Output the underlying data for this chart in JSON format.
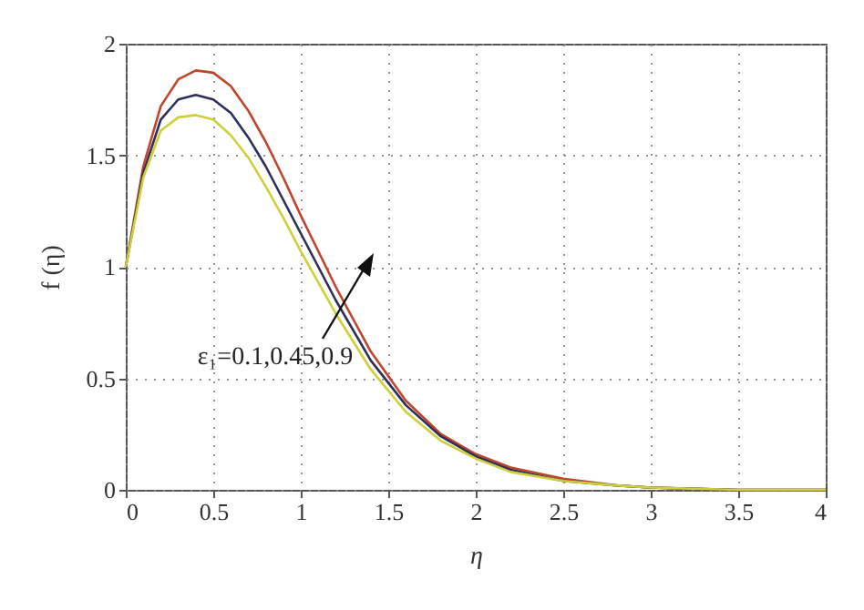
{
  "chart_data": {
    "type": "line",
    "xlabel": "η",
    "ylabel": "f (η)",
    "x": [
      0,
      0.1,
      0.2,
      0.3,
      0.4,
      0.5,
      0.6,
      0.7,
      0.8,
      0.9,
      1.0,
      1.2,
      1.4,
      1.6,
      1.8,
      2,
      2.2,
      2.5,
      2.8,
      3,
      3.5,
      4
    ],
    "series": [
      {
        "color": "#c0452c",
        "values": [
          1.0,
          1.45,
          1.72,
          1.84,
          1.88,
          1.87,
          1.81,
          1.7,
          1.56,
          1.4,
          1.23,
          0.91,
          0.62,
          0.4,
          0.25,
          0.16,
          0.1,
          0.05,
          0.02,
          0.01,
          0,
          0
        ]
      },
      {
        "color": "#2b2f5a",
        "values": [
          1.0,
          1.42,
          1.66,
          1.75,
          1.77,
          1.75,
          1.69,
          1.58,
          1.45,
          1.3,
          1.15,
          0.85,
          0.58,
          0.38,
          0.24,
          0.15,
          0.09,
          0.04,
          0.02,
          0.01,
          0,
          0
        ]
      },
      {
        "color": "#cfcf3a",
        "values": [
          1.0,
          1.4,
          1.61,
          1.67,
          1.68,
          1.66,
          1.59,
          1.49,
          1.36,
          1.22,
          1.07,
          0.79,
          0.54,
          0.35,
          0.22,
          0.14,
          0.08,
          0.04,
          0.02,
          0.01,
          0,
          0
        ]
      }
    ],
    "xlim": [
      0,
      4
    ],
    "xticks": [
      0,
      0.5,
      1,
      1.5,
      2,
      2.5,
      3,
      3.5,
      4
    ],
    "ylim": [
      0,
      2
    ],
    "yticks": [
      0,
      0.5,
      1,
      1.5,
      2
    ],
    "grid": true,
    "legend": false,
    "marker": "none",
    "line_style": "solid",
    "annotations": [
      "ε₁=0.1,0.45,0.9"
    ]
  }
}
